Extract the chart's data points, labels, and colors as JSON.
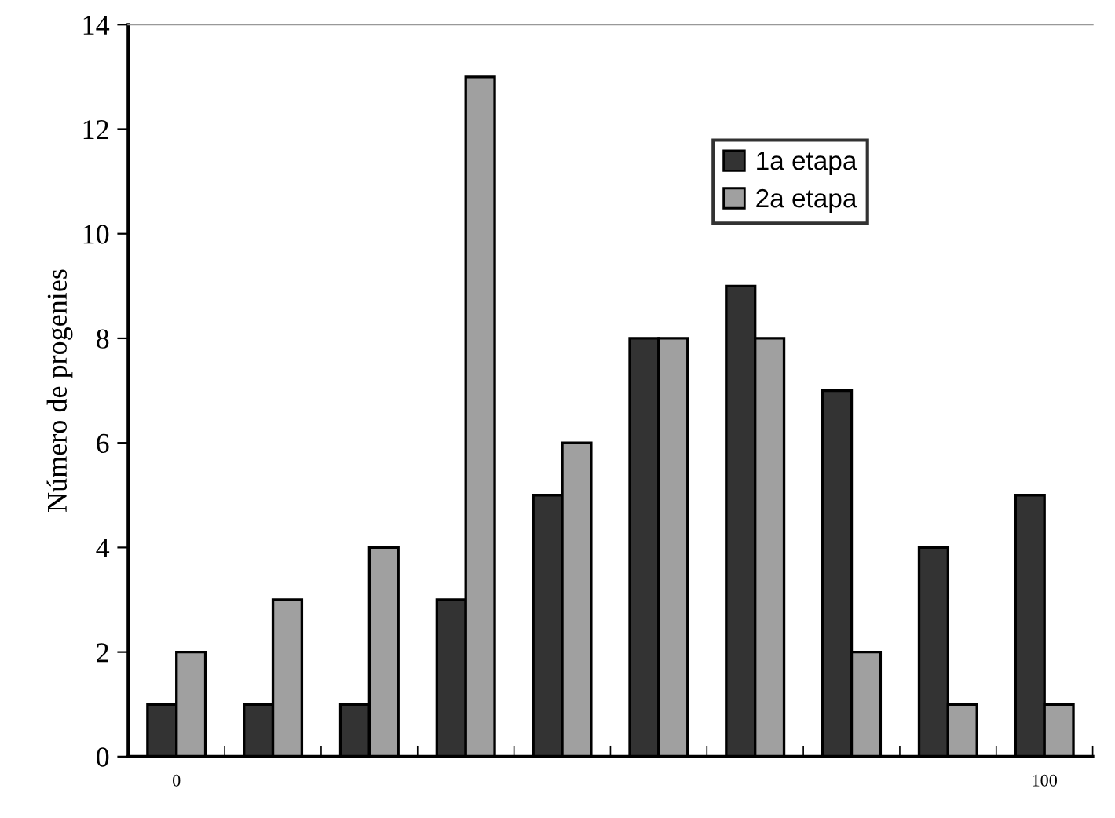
{
  "chart_data": {
    "type": "bar",
    "ylabel": "Número de progenies",
    "categories": [
      "0",
      null,
      null,
      null,
      null,
      null,
      null,
      null,
      null,
      "100"
    ],
    "series": [
      {
        "name": "1a etapa",
        "color": "#333333",
        "values": [
          1,
          1,
          1,
          3,
          5,
          8,
          9,
          7,
          4,
          5
        ]
      },
      {
        "name": "2a etapa",
        "color": "#a0a0a0",
        "values": [
          2,
          3,
          4,
          13,
          6,
          8,
          8,
          2,
          1,
          1
        ]
      }
    ],
    "ylim": [
      0,
      14
    ],
    "yticks": [
      0,
      2,
      4,
      6,
      8,
      10,
      12,
      14
    ],
    "grid": false,
    "legend": "top right"
  }
}
